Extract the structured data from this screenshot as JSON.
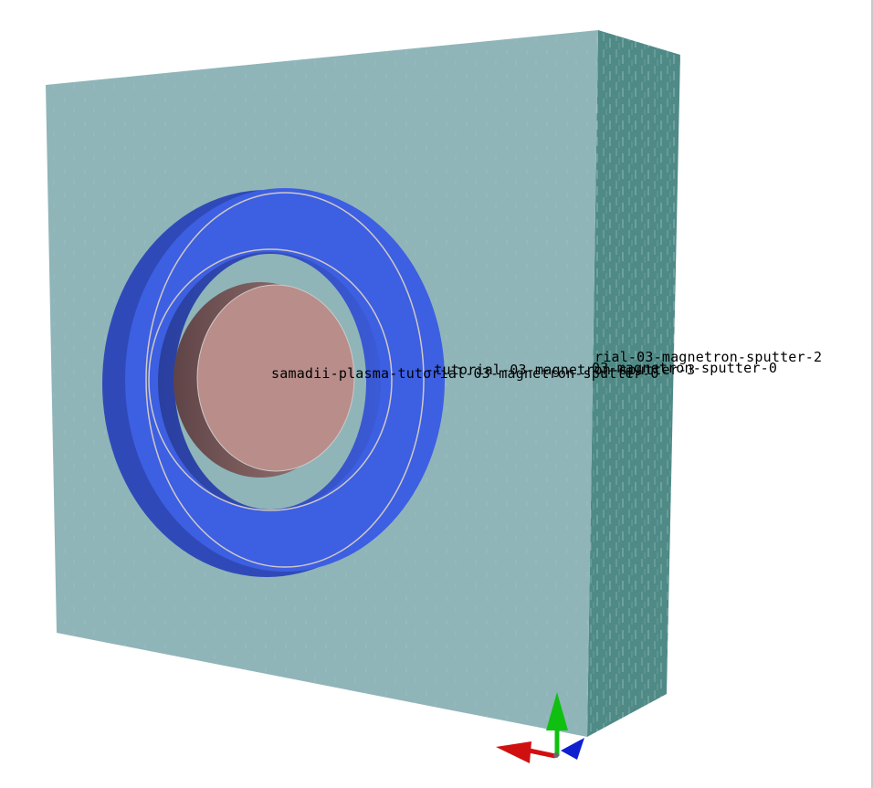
{
  "viewer": {
    "background": "#ffffff"
  },
  "scene": {
    "labels": [
      "samadii-plasma-tutorial-03-magnetron-sputter-0",
      "-tutorial-03-magnetron-sputter-3",
      "rial-03-magnetron-sputter-2",
      "03-magnetron-sputter-0"
    ],
    "colors": {
      "block_front": "#8fb5b9",
      "block_side": "#4f8a87",
      "ring": "#3f5fe0",
      "ring_shadow": "#2b44a8",
      "disk": "#b88d8a",
      "disk_side": "#7c5d5e",
      "outline": "#cfc9c6"
    }
  },
  "axis_triad": {
    "x_color": "#d01010",
    "y_color": "#10c010",
    "z_color": "#1020d0",
    "icon": "xyz-axis-triad-icon"
  }
}
